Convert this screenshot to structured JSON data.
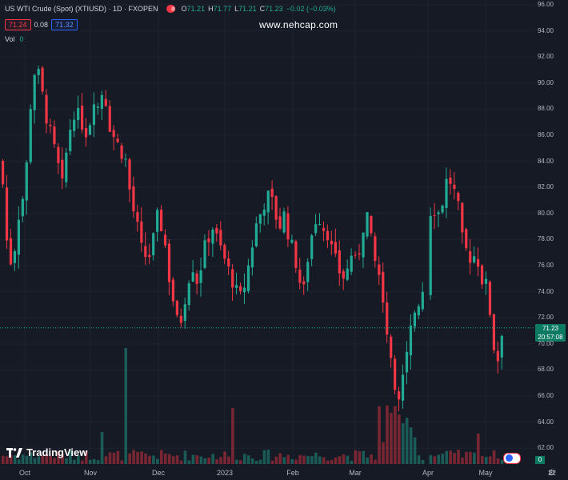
{
  "legend": {
    "title": "US WTI Crude (Spot) (XTIUSD) · 1D · FXOPEN",
    "open_label": "O",
    "open": "71.21",
    "high_label": "H",
    "high": "71.77",
    "low_label": "L",
    "low": "71.21",
    "close_label": "C",
    "close": "71.23",
    "change": "−0.02 (−0.03%)",
    "bid": "71.24",
    "spread": "0.08",
    "ask": "71.32",
    "vol_label": "Vol",
    "vol_value": "0"
  },
  "watermark": "www.nehcap.com",
  "brand": "TradingView",
  "price_tag": {
    "price": "71.23",
    "countdown": "20:57:08"
  },
  "vol_tag": "0",
  "colors": {
    "up": "#22ab94",
    "down": "#f23645",
    "bg": "#161a25",
    "grid": "#1f2330"
  },
  "chart_data": {
    "type": "candlestick",
    "symbol": "XTIUSD",
    "interval": "1D",
    "y_ticks": [
      "96.00",
      "94.00",
      "92.00",
      "90.00",
      "88.00",
      "86.00",
      "84.00",
      "82.00",
      "80.00",
      "78.00",
      "76.00",
      "74.00",
      "72.00",
      "70.00",
      "68.00",
      "66.00",
      "64.00",
      "62.00"
    ],
    "x_ticks": [
      "Oct",
      "Nov",
      "Dec",
      "2023",
      "Feb",
      "Mar",
      "Apr",
      "May",
      "22"
    ],
    "ylim": [
      61,
      96.5
    ],
    "current_price": 71.23
  }
}
